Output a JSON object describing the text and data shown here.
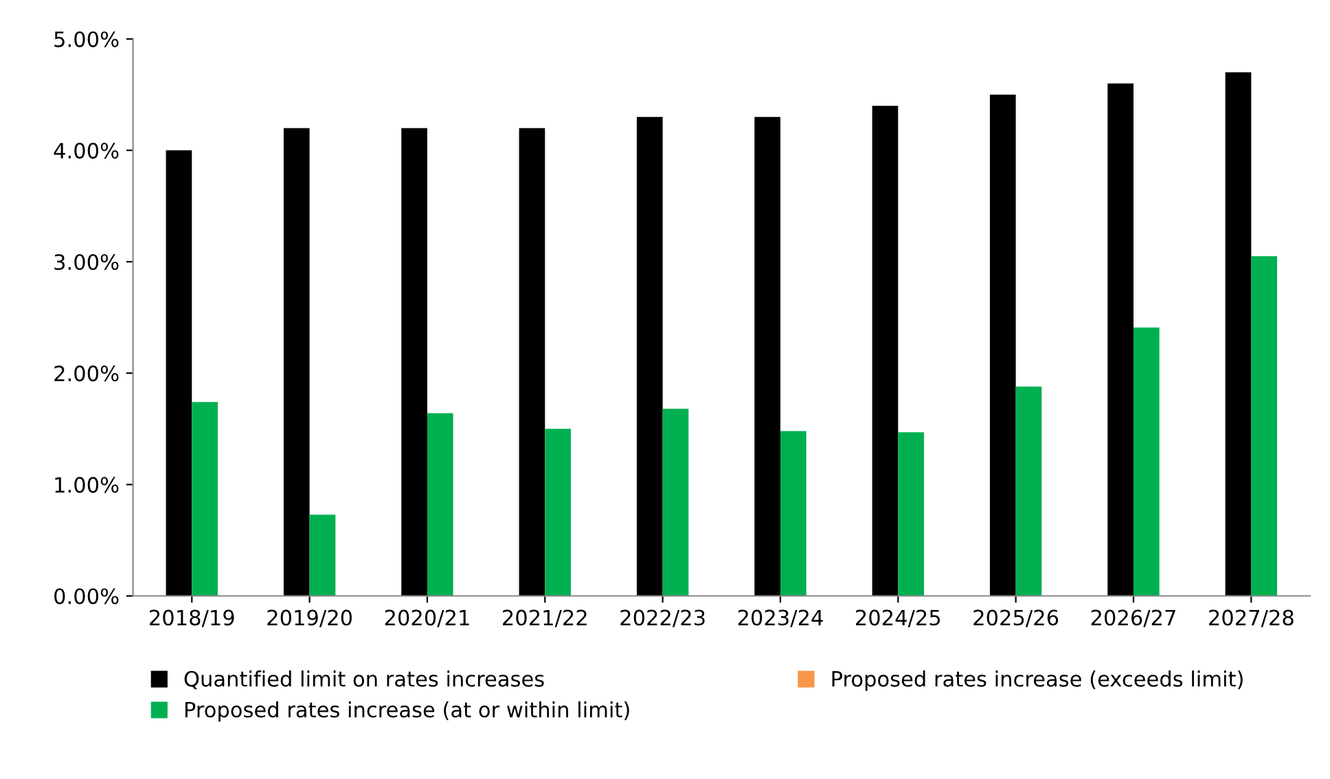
{
  "chart_data": {
    "type": "bar",
    "categories": [
      "2018/19",
      "2019/20",
      "2020/21",
      "2021/22",
      "2022/23",
      "2023/24",
      "2024/25",
      "2025/26",
      "2026/27",
      "2027/28"
    ],
    "series": [
      {
        "name": "Quantified limit on rates increases",
        "color": "#000000",
        "values": [
          4.0,
          4.2,
          4.2,
          4.2,
          4.3,
          4.3,
          4.4,
          4.5,
          4.6,
          4.7
        ]
      },
      {
        "name": "Proposed rates increase (at or within limit)",
        "color": "#00b050",
        "values": [
          1.74,
          0.73,
          1.64,
          1.5,
          1.68,
          1.48,
          1.47,
          1.88,
          2.41,
          3.05
        ]
      },
      {
        "name": "Proposed rates increase (exceeds limit)",
        "color": "#f79646",
        "values": [
          null,
          null,
          null,
          null,
          null,
          null,
          null,
          null,
          null,
          null
        ]
      }
    ],
    "ylim": [
      0,
      5
    ],
    "yticks": [
      {
        "value": 0,
        "label": "0.00%"
      },
      {
        "value": 1,
        "label": "1.00%"
      },
      {
        "value": 2,
        "label": "2.00%"
      },
      {
        "value": 3,
        "label": "3.00%"
      },
      {
        "value": 4,
        "label": "4.00%"
      },
      {
        "value": 5,
        "label": "5.00%"
      }
    ],
    "grid": false,
    "legend": "bottom"
  }
}
